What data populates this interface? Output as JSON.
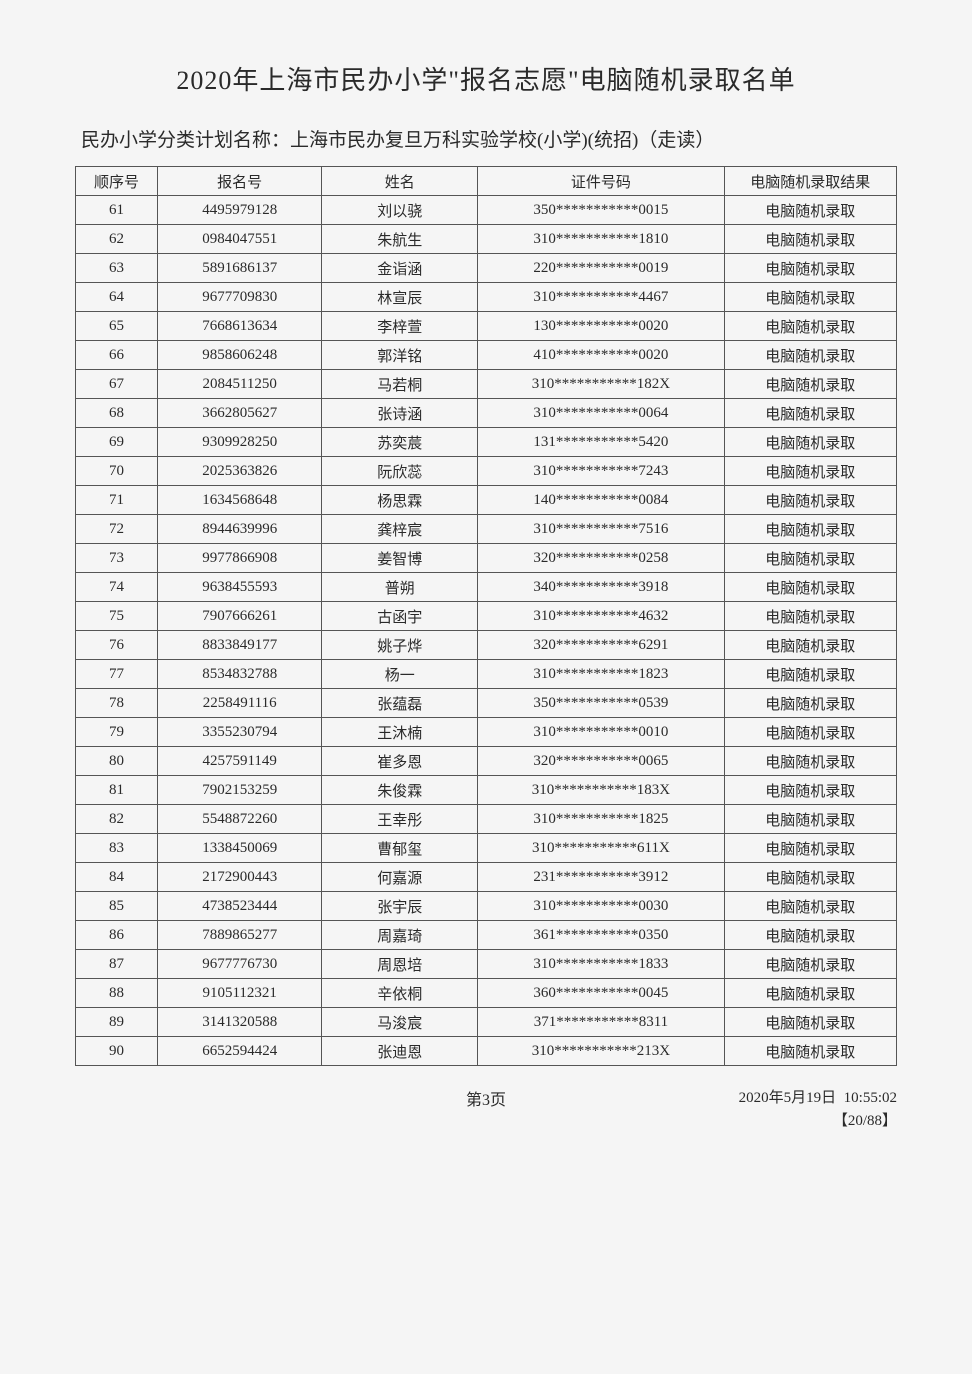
{
  "title": "2020年上海市民办小学\"报名志愿\"电脑随机录取名单",
  "subtitle_label": "民办小学分类计划名称：",
  "subtitle_value": "上海市民办复旦万科实验学校(小学)(统招)（走读）",
  "columns": {
    "seq": "顺序号",
    "reg": "报名号",
    "name": "姓名",
    "id": "证件号码",
    "result": "电脑随机录取结果"
  },
  "result_text": "电脑随机录取",
  "rows": [
    {
      "seq": "61",
      "reg": "4495979128",
      "name": "刘以骁",
      "id": "350***********0015"
    },
    {
      "seq": "62",
      "reg": "0984047551",
      "name": "朱航生",
      "id": "310***********1810"
    },
    {
      "seq": "63",
      "reg": "5891686137",
      "name": "金诣涵",
      "id": "220***********0019"
    },
    {
      "seq": "64",
      "reg": "9677709830",
      "name": "林宣辰",
      "id": "310***********4467"
    },
    {
      "seq": "65",
      "reg": "7668613634",
      "name": "李梓萱",
      "id": "130***********0020"
    },
    {
      "seq": "66",
      "reg": "9858606248",
      "name": "郭洋铭",
      "id": "410***********0020"
    },
    {
      "seq": "67",
      "reg": "2084511250",
      "name": "马若桐",
      "id": "310***********182X"
    },
    {
      "seq": "68",
      "reg": "3662805627",
      "name": "张诗涵",
      "id": "310***********0064"
    },
    {
      "seq": "69",
      "reg": "9309928250",
      "name": "苏奕莀",
      "id": "131***********5420"
    },
    {
      "seq": "70",
      "reg": "2025363826",
      "name": "阮欣蕊",
      "id": "310***********7243"
    },
    {
      "seq": "71",
      "reg": "1634568648",
      "name": "杨思霖",
      "id": "140***********0084"
    },
    {
      "seq": "72",
      "reg": "8944639996",
      "name": "龚梓宸",
      "id": "310***********7516"
    },
    {
      "seq": "73",
      "reg": "9977866908",
      "name": "姜智博",
      "id": "320***********0258"
    },
    {
      "seq": "74",
      "reg": "9638455593",
      "name": "普朔",
      "id": "340***********3918"
    },
    {
      "seq": "75",
      "reg": "7907666261",
      "name": "古函宇",
      "id": "310***********4632"
    },
    {
      "seq": "76",
      "reg": "8833849177",
      "name": "姚子烨",
      "id": "320***********6291"
    },
    {
      "seq": "77",
      "reg": "8534832788",
      "name": "杨一",
      "id": "310***********1823"
    },
    {
      "seq": "78",
      "reg": "2258491116",
      "name": "张蕴磊",
      "id": "350***********0539"
    },
    {
      "seq": "79",
      "reg": "3355230794",
      "name": "王沐楠",
      "id": "310***********0010"
    },
    {
      "seq": "80",
      "reg": "4257591149",
      "name": "崔多恩",
      "id": "320***********0065"
    },
    {
      "seq": "81",
      "reg": "7902153259",
      "name": "朱俊霖",
      "id": "310***********183X"
    },
    {
      "seq": "82",
      "reg": "5548872260",
      "name": "王幸彤",
      "id": "310***********1825"
    },
    {
      "seq": "83",
      "reg": "1338450069",
      "name": "曹郁玺",
      "id": "310***********611X"
    },
    {
      "seq": "84",
      "reg": "2172900443",
      "name": "何嘉源",
      "id": "231***********3912"
    },
    {
      "seq": "85",
      "reg": "4738523444",
      "name": "张宇辰",
      "id": "310***********0030"
    },
    {
      "seq": "86",
      "reg": "7889865277",
      "name": "周嘉琦",
      "id": "361***********0350"
    },
    {
      "seq": "87",
      "reg": "9677776730",
      "name": "周恩培",
      "id": "310***********1833"
    },
    {
      "seq": "88",
      "reg": "9105112321",
      "name": "辛依桐",
      "id": "360***********0045"
    },
    {
      "seq": "89",
      "reg": "3141320588",
      "name": "马浚宸",
      "id": "371***********8311"
    },
    {
      "seq": "90",
      "reg": "6652594424",
      "name": "张迪恩",
      "id": "310***********213X"
    }
  ],
  "footer": {
    "page_label": "第3页",
    "date": "2020年5月19日",
    "time": "10:55:02",
    "page_indicator": "【20/88】"
  }
}
